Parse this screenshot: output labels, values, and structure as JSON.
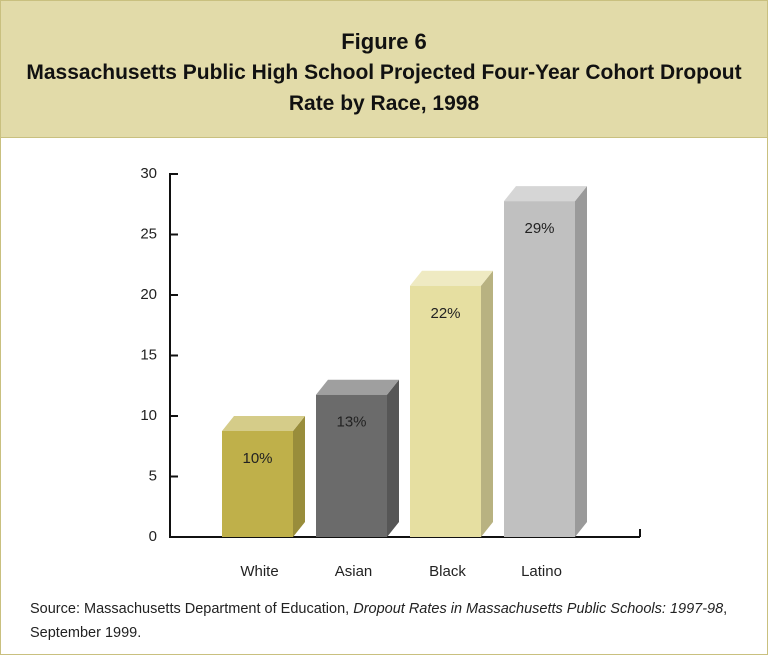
{
  "header": {
    "figure": "Figure 6"
  },
  "chart_data": {
    "type": "bar",
    "title": "Massachusetts Public High School Projected Four-Year Cohort Dropout Rate by Race, 1998",
    "categories": [
      "White",
      "Asian",
      "Black",
      "Latino"
    ],
    "values": [
      10,
      13,
      22,
      29
    ],
    "value_labels": [
      "10%",
      "13%",
      "22%",
      "29%"
    ],
    "colors": [
      "#bfb04a",
      "#6b6b6b",
      "#e6dfa1",
      "#c0c0c0"
    ],
    "ylim": [
      0,
      30
    ],
    "yticks": [
      0,
      5,
      10,
      15,
      20,
      25,
      30
    ]
  },
  "source": {
    "label": "Source:",
    "text": "Massachusetts Department of Education,",
    "publication": "Dropout Rates in Massachusetts Public Schools: 1997-98",
    "date": ", September 1999."
  }
}
